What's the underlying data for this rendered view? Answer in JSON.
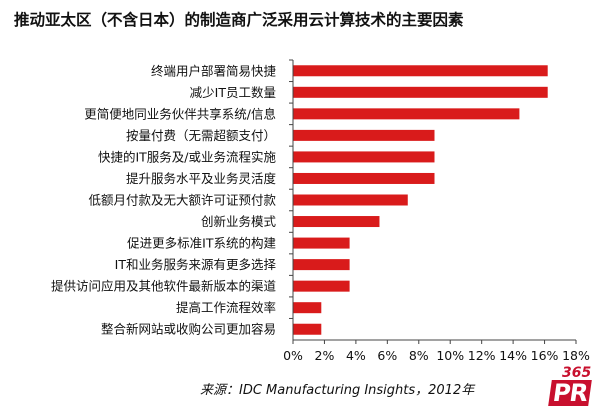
{
  "chart_data": {
    "type": "bar",
    "orientation": "horizontal",
    "title": "推动亚太区（不含日本）的制造商广泛采用云计算技术的主要因素",
    "categories": [
      "终端用户部署简易快捷",
      "减少IT员工数量",
      "更简便地同业务伙伴共享系统/信息",
      "按量付费（无需超额支付）",
      "快捷的IT服务及/或业务流程实施",
      "提升服务水平及业务灵活度",
      "低额月付款及无大额许可证预付款",
      "创新业务模式",
      "促进更多标准IT系统的构建",
      "IT和业务服务来源有更多选择",
      "提供访问应用及其他软件最新版本的渠道",
      "提高工作流程效率",
      "整合新网站或收购公司更加容易"
    ],
    "values": [
      16.2,
      16.2,
      14.4,
      9.0,
      9.0,
      9.0,
      7.3,
      5.5,
      3.6,
      3.6,
      3.6,
      1.8,
      1.8
    ],
    "xlim": [
      0,
      18
    ],
    "xticks": [
      0,
      2,
      4,
      6,
      8,
      10,
      12,
      14,
      16,
      18
    ],
    "xtick_labels": [
      "0%",
      "2%",
      "4%",
      "6%",
      "8%",
      "10%",
      "12%",
      "14%",
      "16%",
      "18%"
    ],
    "xlabel": "",
    "ylabel": "",
    "bar_color": "#d91b1b",
    "axis_color": "#444444"
  },
  "source_text": "来源：IDC Manufacturing Insights，2012年",
  "logo": {
    "number": "365",
    "letters": "PR",
    "color": "#c8102e"
  }
}
